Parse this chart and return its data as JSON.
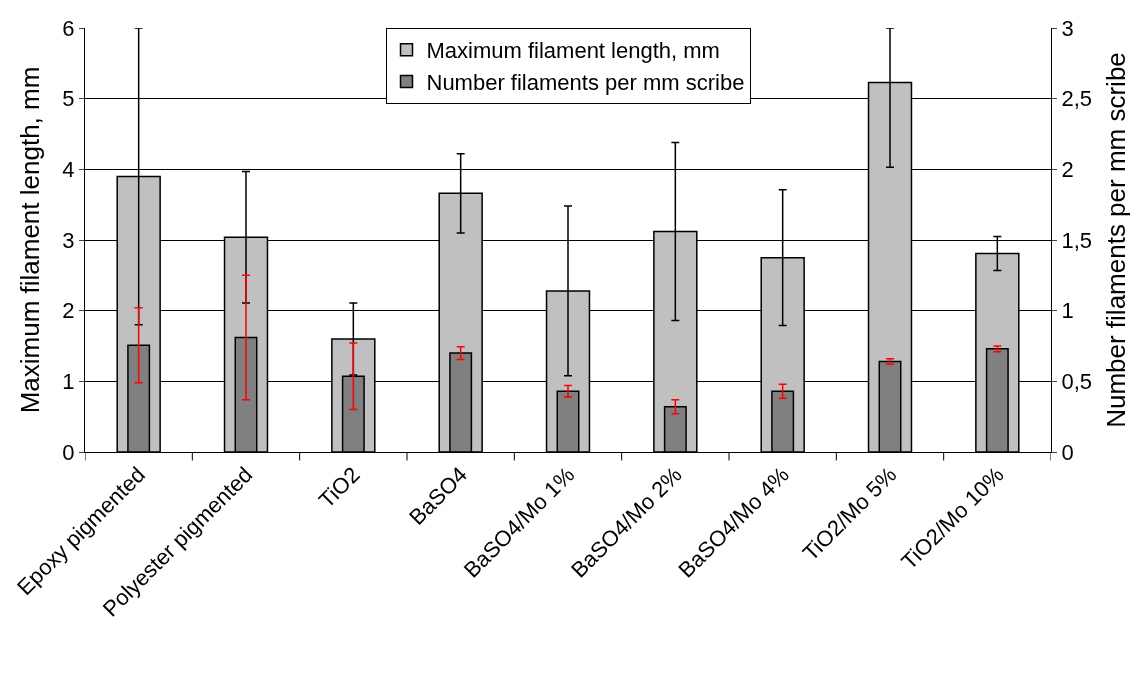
{
  "chart_data": {
    "type": "bar",
    "categories": [
      "Epoxy pigmented",
      "Polyester pigmented",
      "TiO2",
      "BaSO4",
      "BaSO4/Mo 1%",
      "BaSO4/Mo 2%",
      "BaSO4/Mo 4%",
      "TiO2/Mo 5%",
      "TiO2/Mo 10%"
    ],
    "series": [
      {
        "name": "Maximum filament length, mm",
        "color": "#c0c0c0",
        "values": [
          3.9,
          3.04,
          1.6,
          3.66,
          2.28,
          3.12,
          2.75,
          5.23,
          2.81
        ],
        "errors": [
          [
            1.8,
            6
          ],
          0.93,
          0.51,
          0.56,
          1.2,
          1.26,
          0.96,
          [
            4.03,
            6
          ],
          0.24
        ]
      },
      {
        "name": "Number filaments per mm scribe",
        "color": "#808080",
        "axis": "y2",
        "values": [
          0.755,
          0.81,
          0.536,
          0.7,
          0.43,
          0.32,
          0.43,
          0.64,
          0.73
        ],
        "errors": [
          0.265,
          0.44,
          0.235,
          0.045,
          0.04,
          0.05,
          0.05,
          0.02,
          0.02
        ]
      }
    ],
    "ylabel": "Maximum filament length, mm",
    "y2label": "Number filaments per mm scribe",
    "ylim": [
      0,
      6
    ],
    "yticks": [
      0,
      1,
      2,
      3,
      4,
      5,
      6
    ],
    "y2lim": [
      0,
      3
    ],
    "y2ticks": [
      0,
      {
        "value": 0.5,
        "label": "0,5"
      },
      1,
      {
        "value": 1.5,
        "label": "1,5"
      },
      2,
      {
        "value": 2.5,
        "label": "2,5"
      },
      3
    ],
    "grid": "y",
    "legend": "top"
  }
}
